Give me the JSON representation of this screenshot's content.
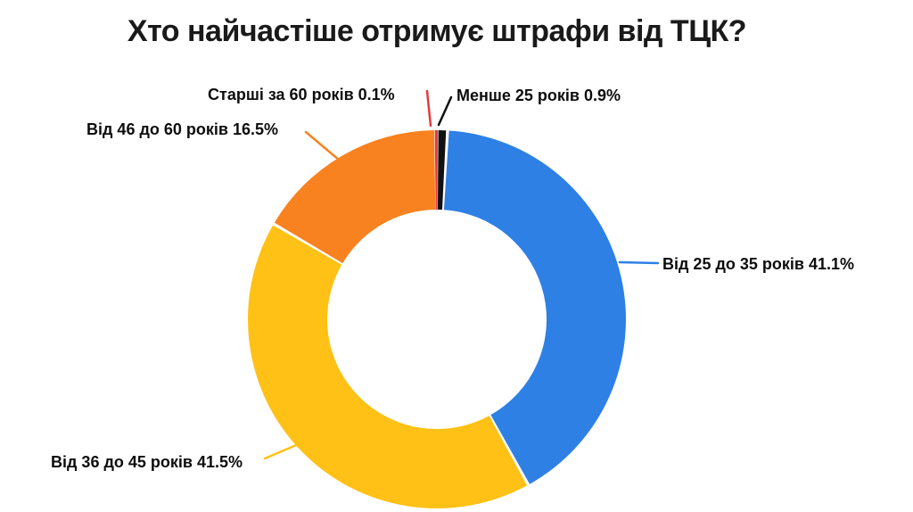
{
  "page": {
    "background": "#ffffff"
  },
  "chart_data": {
    "type": "pie",
    "subtype": "donut",
    "title": "Хто найчастіше отримує штрафи від ТЦК?",
    "start_angle_deg": 0,
    "direction": "clockwise",
    "hole_color": "#ffffff",
    "legend_position": "none",
    "slices": [
      {
        "label": "Менше 25 років",
        "value": 0.9,
        "display": "Менше 25 років 0.9%",
        "color": "#111111"
      },
      {
        "label": "Від 25 до 35 років",
        "value": 41.1,
        "display": "Від 25 до 35 років 41.1%",
        "color": "#2E80E5"
      },
      {
        "label": "Від 36 до 45 років",
        "value": 41.5,
        "display": "Від 36 до 45 років 41.5%",
        "color": "#FFC115"
      },
      {
        "label": "Від 46 до 60 років",
        "value": 16.5,
        "display": "Від 46 до 60 років 16.5%",
        "color": "#F8821F"
      },
      {
        "label": "Старші за 60 років",
        "value": 0.1,
        "display": "Старші за 60 років 0.1%",
        "color": "#E23B3F"
      }
    ]
  }
}
